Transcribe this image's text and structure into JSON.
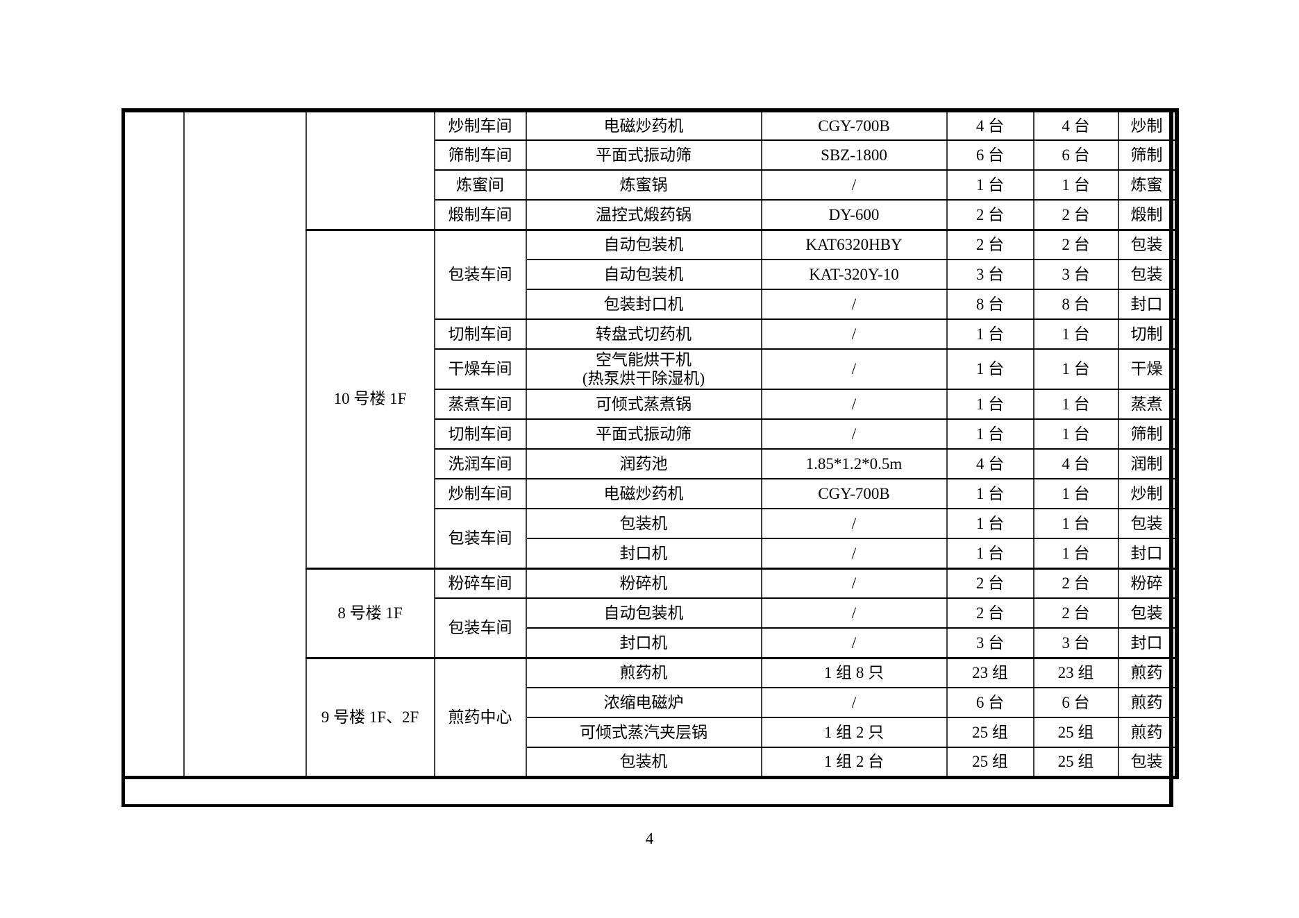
{
  "page": {
    "number": "4"
  },
  "table": {
    "sections": [
      {
        "building": "",
        "rows": [
          {
            "workshop": "炒制车间",
            "equipment": "电磁炒药机",
            "model": "CGY-700B",
            "installed": "4 台",
            "operating": "4 台",
            "process": "炒制"
          },
          {
            "workshop": "筛制车间",
            "equipment": "平面式振动筛",
            "model": "SBZ-1800",
            "installed": "6 台",
            "operating": "6 台",
            "process": "筛制"
          },
          {
            "workshop": "炼蜜间",
            "equipment": "炼蜜锅",
            "model": "/",
            "installed": "1 台",
            "operating": "1 台",
            "process": "炼蜜"
          },
          {
            "workshop": "煅制车间",
            "equipment": "温控式煅药锅",
            "model": "DY-600",
            "installed": "2 台",
            "operating": "2 台",
            "process": "煅制"
          }
        ]
      },
      {
        "building": "10 号楼 1F",
        "rows": [
          {
            "workshop": "包装车间",
            "span": 3,
            "equipment": "自动包装机",
            "model": "KAT6320HBY",
            "installed": "2 台",
            "operating": "2 台",
            "process": "包装"
          },
          {
            "equipment": "自动包装机",
            "model": "KAT-320Y-10",
            "installed": "3 台",
            "operating": "3 台",
            "process": "包装"
          },
          {
            "equipment": "包装封口机",
            "model": "/",
            "installed": "8 台",
            "operating": "8 台",
            "process": "封口"
          },
          {
            "workshop": "切制车间",
            "equipment": "转盘式切药机",
            "model": "/",
            "installed": "1 台",
            "operating": "1 台",
            "process": "切制"
          },
          {
            "workshop": "干燥车间",
            "equipment": [
              "空气能烘干机",
              "(热泵烘干除湿机)"
            ],
            "model": "/",
            "installed": "1 台",
            "operating": "1 台",
            "process": "干燥"
          },
          {
            "workshop": "蒸煮车间",
            "equipment": "可倾式蒸煮锅",
            "model": "/",
            "installed": "1 台",
            "operating": "1 台",
            "process": "蒸煮"
          },
          {
            "workshop": "切制车间",
            "equipment": "平面式振动筛",
            "model": "/",
            "installed": "1 台",
            "operating": "1 台",
            "process": "筛制"
          },
          {
            "workshop": "洗润车间",
            "equipment": "润药池",
            "model": "1.85*1.2*0.5m",
            "installed": "4 台",
            "operating": "4 台",
            "process": "润制"
          },
          {
            "workshop": "炒制车间",
            "equipment": "电磁炒药机",
            "model": "CGY-700B",
            "installed": "1 台",
            "operating": "1 台",
            "process": "炒制"
          },
          {
            "workshop": "包装车间",
            "span": 2,
            "equipment": "包装机",
            "model": "/",
            "installed": "1 台",
            "operating": "1 台",
            "process": "包装"
          },
          {
            "equipment": "封口机",
            "model": "/",
            "installed": "1 台",
            "operating": "1 台",
            "process": "封口"
          }
        ]
      },
      {
        "building": "8 号楼 1F",
        "rows": [
          {
            "workshop": "粉碎车间",
            "equipment": "粉碎机",
            "model": "/",
            "installed": "2 台",
            "operating": "2 台",
            "process": "粉碎"
          },
          {
            "workshop": "包装车间",
            "span": 2,
            "equipment": "自动包装机",
            "model": "/",
            "installed": "2 台",
            "operating": "2 台",
            "process": "包装"
          },
          {
            "equipment": "封口机",
            "model": "/",
            "installed": "3 台",
            "operating": "3 台",
            "process": "封口"
          }
        ]
      },
      {
        "building": "9 号楼 1F、2F",
        "rows": [
          {
            "workshop": "煎药中心",
            "span": 4,
            "equipment": "煎药机",
            "model": "1 组 8 只",
            "installed": "23 组",
            "operating": "23 组",
            "process": "煎药"
          },
          {
            "equipment": "浓缩电磁炉",
            "model": "/",
            "installed": "6 台",
            "operating": "6 台",
            "process": "煎药"
          },
          {
            "equipment": "可倾式蒸汽夹层锅",
            "model": "1 组 2 只",
            "installed": "25 组",
            "operating": "25 组",
            "process": "煎药"
          },
          {
            "equipment": "包装机",
            "model": "1 组 2 台",
            "installed": "25 组",
            "operating": "25 组",
            "process": "包装"
          }
        ]
      }
    ]
  }
}
